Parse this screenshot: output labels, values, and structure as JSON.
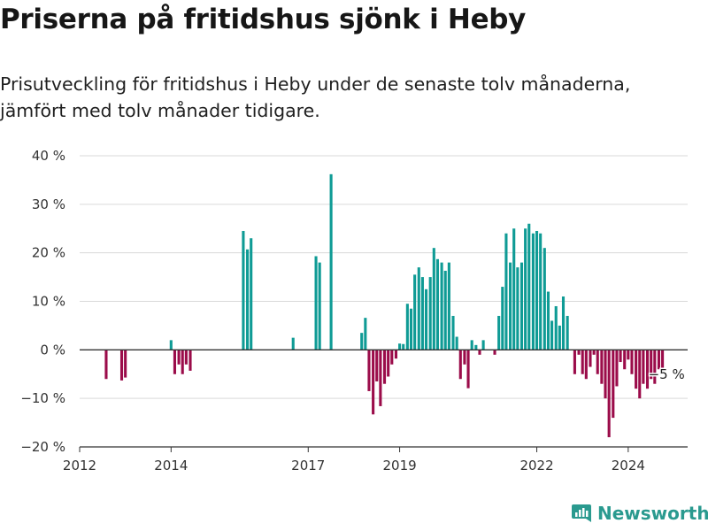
{
  "header": {
    "title": "Priserna på fritidshus sjönk i Heby",
    "subtitle": "Prisutveckling för fritidshus i Heby under de senaste tolv månaderna, jämfört med tolv månader tidigare."
  },
  "brand": {
    "name": "Newsworthy"
  },
  "colors": {
    "positive": "#0f9b95",
    "negative": "#9b0c4a",
    "brand": "#2a9a8f"
  },
  "chart_data": {
    "type": "bar",
    "title": "Priserna på fritidshus sjönk i Heby",
    "xlabel": "",
    "ylabel": "",
    "xlim": [
      2012.0,
      2025.3
    ],
    "ylim": [
      -20,
      40
    ],
    "yticks": [
      {
        "value": 40,
        "label": "40 %"
      },
      {
        "value": 30,
        "label": "30 %"
      },
      {
        "value": 20,
        "label": "20 %"
      },
      {
        "value": 10,
        "label": "10 %"
      },
      {
        "value": 0,
        "label": "0 %"
      },
      {
        "value": -10,
        "label": "−10 %"
      },
      {
        "value": -20,
        "label": "−20 %"
      }
    ],
    "xticks": [
      {
        "value": 2012,
        "label": "2012"
      },
      {
        "value": 2014,
        "label": "2014"
      },
      {
        "value": 2017,
        "label": "2017"
      },
      {
        "value": 2019,
        "label": "2019"
      },
      {
        "value": 2022,
        "label": "2022"
      },
      {
        "value": 2024,
        "label": "2024"
      }
    ],
    "grid": true,
    "bars": [
      {
        "x": 2012.58,
        "value": -6.0
      },
      {
        "x": 2012.92,
        "value": -6.3
      },
      {
        "x": 2013.0,
        "value": -5.7
      },
      {
        "x": 2014.0,
        "value": 2.0
      },
      {
        "x": 2014.08,
        "value": -5.0
      },
      {
        "x": 2014.17,
        "value": -3.0
      },
      {
        "x": 2014.25,
        "value": -5.0
      },
      {
        "x": 2014.33,
        "value": -3.0
      },
      {
        "x": 2014.42,
        "value": -4.3
      },
      {
        "x": 2015.58,
        "value": 24.5
      },
      {
        "x": 2015.67,
        "value": 20.7
      },
      {
        "x": 2015.75,
        "value": 23.0
      },
      {
        "x": 2016.67,
        "value": 2.5
      },
      {
        "x": 2017.17,
        "value": 19.3
      },
      {
        "x": 2017.25,
        "value": 18.0
      },
      {
        "x": 2017.5,
        "value": 36.2
      },
      {
        "x": 2018.17,
        "value": 3.5
      },
      {
        "x": 2018.25,
        "value": 6.6
      },
      {
        "x": 2018.33,
        "value": -8.5
      },
      {
        "x": 2018.42,
        "value": -13.3
      },
      {
        "x": 2018.5,
        "value": -6.5
      },
      {
        "x": 2018.58,
        "value": -11.6
      },
      {
        "x": 2018.67,
        "value": -7.0
      },
      {
        "x": 2018.75,
        "value": -5.5
      },
      {
        "x": 2018.83,
        "value": -3.0
      },
      {
        "x": 2018.92,
        "value": -1.8
      },
      {
        "x": 2019.0,
        "value": 1.3
      },
      {
        "x": 2019.08,
        "value": 1.2
      },
      {
        "x": 2019.17,
        "value": 9.5
      },
      {
        "x": 2019.25,
        "value": 8.5
      },
      {
        "x": 2019.33,
        "value": 15.5
      },
      {
        "x": 2019.42,
        "value": 17.0
      },
      {
        "x": 2019.5,
        "value": 15.0
      },
      {
        "x": 2019.58,
        "value": 12.5
      },
      {
        "x": 2019.67,
        "value": 15.0
      },
      {
        "x": 2019.75,
        "value": 21.0
      },
      {
        "x": 2019.83,
        "value": 18.7
      },
      {
        "x": 2019.92,
        "value": 18.0
      },
      {
        "x": 2020.0,
        "value": 16.3
      },
      {
        "x": 2020.08,
        "value": 18.0
      },
      {
        "x": 2020.17,
        "value": 7.0
      },
      {
        "x": 2020.25,
        "value": 2.7
      },
      {
        "x": 2020.33,
        "value": -6.0
      },
      {
        "x": 2020.42,
        "value": -3.0
      },
      {
        "x": 2020.5,
        "value": -7.9
      },
      {
        "x": 2020.58,
        "value": 2.0
      },
      {
        "x": 2020.67,
        "value": 1.0
      },
      {
        "x": 2020.75,
        "value": -1.0
      },
      {
        "x": 2020.83,
        "value": 2.0
      },
      {
        "x": 2021.08,
        "value": -1.0
      },
      {
        "x": 2021.17,
        "value": 7.0
      },
      {
        "x": 2021.25,
        "value": 13.0
      },
      {
        "x": 2021.33,
        "value": 24.0
      },
      {
        "x": 2021.42,
        "value": 18.0
      },
      {
        "x": 2021.5,
        "value": 25.0
      },
      {
        "x": 2021.58,
        "value": 17.0
      },
      {
        "x": 2021.67,
        "value": 18.0
      },
      {
        "x": 2021.75,
        "value": 25.0
      },
      {
        "x": 2021.83,
        "value": 26.0
      },
      {
        "x": 2021.92,
        "value": 24.0
      },
      {
        "x": 2022.0,
        "value": 24.5
      },
      {
        "x": 2022.08,
        "value": 24.0
      },
      {
        "x": 2022.17,
        "value": 21.0
      },
      {
        "x": 2022.25,
        "value": 12.0
      },
      {
        "x": 2022.33,
        "value": 6.0
      },
      {
        "x": 2022.42,
        "value": 9.0
      },
      {
        "x": 2022.5,
        "value": 5.0
      },
      {
        "x": 2022.58,
        "value": 11.0
      },
      {
        "x": 2022.67,
        "value": 7.0
      },
      {
        "x": 2022.83,
        "value": -5.0
      },
      {
        "x": 2022.92,
        "value": -1.0
      },
      {
        "x": 2023.0,
        "value": -5.0
      },
      {
        "x": 2023.08,
        "value": -6.0
      },
      {
        "x": 2023.17,
        "value": -3.5
      },
      {
        "x": 2023.25,
        "value": -1.0
      },
      {
        "x": 2023.33,
        "value": -5.0
      },
      {
        "x": 2023.42,
        "value": -7.0
      },
      {
        "x": 2023.5,
        "value": -10.0
      },
      {
        "x": 2023.58,
        "value": -18.0
      },
      {
        "x": 2023.67,
        "value": -14.0
      },
      {
        "x": 2023.75,
        "value": -7.5
      },
      {
        "x": 2023.83,
        "value": -2.5
      },
      {
        "x": 2023.92,
        "value": -4.0
      },
      {
        "x": 2024.0,
        "value": -2.0
      },
      {
        "x": 2024.08,
        "value": -5.0
      },
      {
        "x": 2024.17,
        "value": -8.0
      },
      {
        "x": 2024.25,
        "value": -10.0
      },
      {
        "x": 2024.33,
        "value": -7.0
      },
      {
        "x": 2024.42,
        "value": -8.0
      },
      {
        "x": 2024.5,
        "value": -6.0
      },
      {
        "x": 2024.58,
        "value": -7.0
      },
      {
        "x": 2024.67,
        "value": -4.0
      },
      {
        "x": 2024.75,
        "value": -5.0
      }
    ],
    "annotations": [
      {
        "x": 2024.75,
        "value": -5.0,
        "text": "−5 %"
      }
    ]
  }
}
